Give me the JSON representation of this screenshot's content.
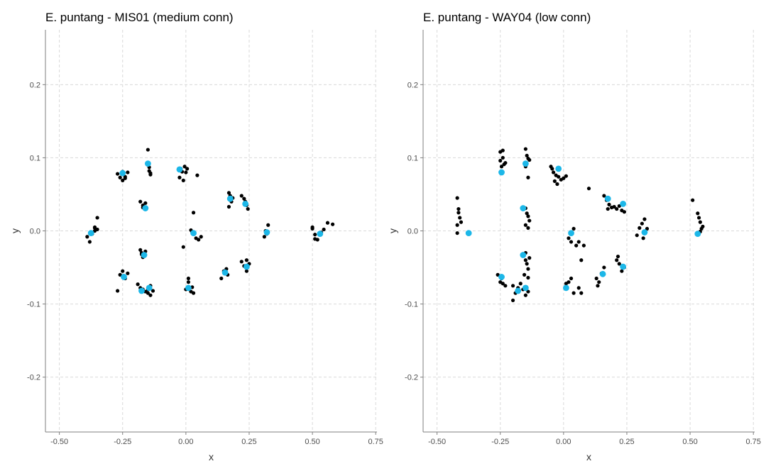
{
  "chart_data": [
    {
      "type": "scatter",
      "title": "E. puntang - MIS01 (medium conn)",
      "xlabel": "x",
      "ylabel": "y",
      "xlim": [
        -0.555,
        0.755
      ],
      "ylim": [
        -0.275,
        0.275
      ],
      "x_ticks": [
        -0.5,
        -0.25,
        0,
        0.25,
        0.5,
        0.75
      ],
      "x_tick_labels": [
        "-0.50",
        "-0.25",
        "0.00",
        "0.25",
        "0.50",
        "0.75"
      ],
      "y_ticks": [
        -0.2,
        -0.1,
        0,
        0.1,
        0.2
      ],
      "y_tick_labels": [
        "-0.2",
        "-0.1",
        "0.0",
        "0.1",
        "0.2"
      ],
      "grid": true,
      "series": [
        {
          "color": "#000000",
          "x": [
            -0.38,
            -0.39,
            -0.37,
            -0.36,
            -0.36,
            -0.35,
            -0.35,
            -0.36,
            -0.27,
            -0.26,
            -0.25,
            -0.24,
            -0.25,
            -0.24,
            -0.23,
            -0.15,
            -0.145,
            -0.14,
            -0.145,
            -0.14,
            -0.02,
            -0.025,
            -0.01,
            -0.015,
            -0.005,
            0,
            0.005,
            0.045,
            -0.18,
            -0.17,
            -0.16,
            -0.17,
            0.17,
            0.175,
            0.18,
            0.185,
            0.17,
            0.22,
            0.23,
            0.235,
            0.24,
            0.245,
            0.31,
            0.32,
            0.325,
            0.315,
            0.5,
            0.51,
            0.52,
            0.535,
            0.545,
            0.56,
            0.58,
            0.51,
            0.5,
            -0.18,
            -0.175,
            -0.17,
            -0.165,
            -0.16,
            -0.175,
            0.03,
            0.025,
            0.04,
            0.05,
            0.06,
            0.02,
            -0.01,
            -0.25,
            -0.26,
            -0.24,
            -0.23,
            -0.27,
            -0.19,
            -0.18,
            -0.17,
            -0.16,
            -0.15,
            -0.14,
            -0.13,
            -0.14,
            -0.15,
            0,
            0.01,
            0.02,
            0.025,
            0.03,
            0.01,
            0.14,
            0.15,
            0.16,
            0.165,
            0.155,
            0.22,
            0.23,
            0.24,
            0.25,
            0.24
          ],
          "y": [
            -0.015,
            -0.008,
            -0.004,
            0,
            0.004,
            0.002,
            0.018,
            0.005,
            0.078,
            0.073,
            0.069,
            0.072,
            0.081,
            0.074,
            0.08,
            0.111,
            0.082,
            0.077,
            0.087,
            0.079,
            0.085,
            0.073,
            0.069,
            0.081,
            0.088,
            0.08,
            0.085,
            0.076,
            0.04,
            0.035,
            0.038,
            0.032,
            0.052,
            0.048,
            0.04,
            0.045,
            0.033,
            0.048,
            0.044,
            0.04,
            0.035,
            0.03,
            -0.008,
            -0.004,
            0.008,
            0,
            0.005,
            -0.005,
            -0.012,
            -0.002,
            0.002,
            0.011,
            0.009,
            -0.011,
            0.003,
            -0.026,
            -0.03,
            -0.036,
            -0.033,
            -0.028,
            -0.032,
            0.025,
            -0.002,
            -0.01,
            -0.012,
            -0.008,
            0.001,
            -0.022,
            -0.055,
            -0.06,
            -0.065,
            -0.058,
            -0.082,
            -0.073,
            -0.078,
            -0.08,
            -0.083,
            -0.085,
            -0.088,
            -0.082,
            -0.075,
            -0.08,
            -0.08,
            -0.07,
            -0.083,
            -0.077,
            -0.085,
            -0.065,
            -0.065,
            -0.055,
            -0.052,
            -0.06,
            -0.058,
            -0.042,
            -0.048,
            -0.055,
            -0.045,
            -0.04
          ]
        },
        {
          "color": "#1cb7e8",
          "x": [
            -0.375,
            -0.25,
            -0.15,
            -0.025,
            -0.16,
            0.175,
            0.235,
            0.32,
            0.53,
            -0.165,
            0.03,
            -0.245,
            -0.175,
            -0.145,
            0.01,
            0.155,
            0.24
          ],
          "y": [
            -0.003,
            0.079,
            0.092,
            0.084,
            0.031,
            0.044,
            0.037,
            -0.002,
            -0.004,
            -0.033,
            -0.003,
            -0.063,
            -0.082,
            -0.078,
            -0.078,
            -0.057,
            -0.049
          ]
        }
      ]
    },
    {
      "type": "scatter",
      "title": "E. puntang - WAY04 (low conn)",
      "xlabel": "x",
      "ylabel": "y",
      "xlim": [
        -0.555,
        0.755
      ],
      "ylim": [
        -0.275,
        0.275
      ],
      "x_ticks": [
        -0.5,
        -0.25,
        0,
        0.25,
        0.5,
        0.75
      ],
      "x_tick_labels": [
        "-0.50",
        "-0.25",
        "0.00",
        "0.25",
        "0.50",
        "0.75"
      ],
      "y_ticks": [
        -0.2,
        -0.1,
        0,
        0.1,
        0.2
      ],
      "y_tick_labels": [
        "-0.2",
        "-0.1",
        "0.0",
        "0.1",
        "0.2"
      ],
      "grid": true,
      "series": [
        {
          "color": "#000000",
          "x": [
            -0.42,
            -0.415,
            -0.41,
            -0.42,
            -0.405,
            -0.415,
            -0.42,
            -0.25,
            -0.24,
            -0.23,
            -0.245,
            -0.235,
            -0.24,
            -0.25,
            -0.15,
            -0.145,
            -0.14,
            -0.135,
            -0.15,
            -0.14,
            -0.05,
            -0.045,
            -0.04,
            -0.03,
            -0.02,
            -0.01,
            0,
            0.01,
            -0.035,
            -0.025,
            0.1,
            -0.15,
            -0.145,
            -0.14,
            -0.135,
            -0.15,
            -0.14,
            0.16,
            0.17,
            0.18,
            0.19,
            0.2,
            0.21,
            0.22,
            0.23,
            0.24,
            0.175,
            0.29,
            0.3,
            0.31,
            0.32,
            0.33,
            0.315,
            0.51,
            0.53,
            0.54,
            0.55,
            0.545,
            0.535,
            0.54,
            -0.15,
            -0.145,
            -0.14,
            -0.135,
            -0.155,
            -0.14,
            -0.15,
            0.02,
            0.03,
            0.04,
            0.05,
            0.06,
            0.07,
            0.08,
            -0.26,
            -0.25,
            -0.24,
            -0.23,
            -0.245,
            -0.2,
            -0.19,
            -0.18,
            -0.17,
            -0.16,
            -0.15,
            -0.14,
            -0.2,
            0.02,
            0.03,
            0.04,
            0.06,
            0.07,
            0.01,
            0.13,
            0.14,
            0.15,
            0.16,
            0.135,
            0.21,
            0.22,
            0.23,
            0.24,
            0.215
          ],
          "y": [
            0.045,
            0.03,
            0.018,
            0.008,
            0.012,
            0.025,
            -0.003,
            0.108,
            0.11,
            0.093,
            0.088,
            0.091,
            0.1,
            0.096,
            0.112,
            0.103,
            0.099,
            0.097,
            0.088,
            0.073,
            0.088,
            0.085,
            0.08,
            0.076,
            0.074,
            0.07,
            0.072,
            0.075,
            0.068,
            0.064,
            0.058,
            0.031,
            0.024,
            0.02,
            0.014,
            0.008,
            0.004,
            0.048,
            0.042,
            0.036,
            0.032,
            0.033,
            0.03,
            0.034,
            0.028,
            0.026,
            0.03,
            -0.006,
            0.004,
            0.01,
            0.016,
            0.003,
            -0.01,
            0.042,
            0.024,
            0.012,
            0.006,
            0.003,
            0.018,
            -0.001,
            -0.04,
            -0.045,
            -0.052,
            -0.037,
            -0.06,
            -0.064,
            -0.03,
            -0.01,
            -0.015,
            0.003,
            -0.02,
            -0.015,
            -0.04,
            -0.02,
            -0.06,
            -0.07,
            -0.072,
            -0.075,
            -0.065,
            -0.095,
            -0.085,
            -0.078,
            -0.072,
            -0.08,
            -0.088,
            -0.083,
            -0.075,
            -0.07,
            -0.065,
            -0.085,
            -0.078,
            -0.085,
            -0.072,
            -0.065,
            -0.07,
            -0.058,
            -0.05,
            -0.075,
            -0.04,
            -0.045,
            -0.055,
            -0.05,
            -0.035
          ]
        },
        {
          "color": "#1cb7e8",
          "x": [
            -0.375,
            -0.245,
            -0.15,
            -0.02,
            -0.16,
            0.175,
            0.235,
            0.32,
            0.53,
            -0.16,
            0.03,
            -0.245,
            -0.18,
            -0.15,
            0.01,
            0.155,
            0.235
          ],
          "y": [
            -0.003,
            0.08,
            0.092,
            0.085,
            0.031,
            0.044,
            0.037,
            -0.002,
            -0.004,
            -0.033,
            -0.003,
            -0.063,
            -0.082,
            -0.078,
            -0.078,
            -0.059,
            -0.049
          ]
        }
      ]
    }
  ]
}
